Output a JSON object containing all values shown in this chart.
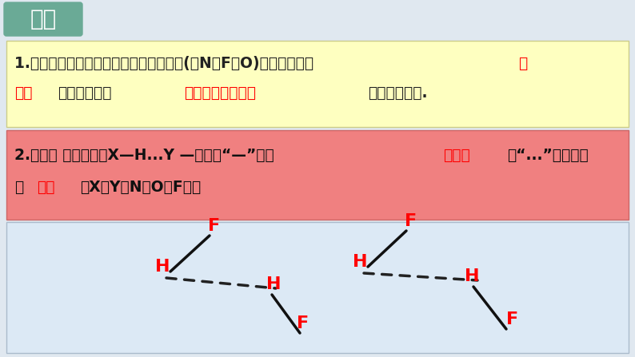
{
  "title": "氢键",
  "title_bg": "#6aaa96",
  "title_text_color": "#ffffff",
  "section1_bg": "#feffc0",
  "section2_bg": "#f08080",
  "atom_red": "#ff0000",
  "bond_color": "#111111",
  "hbond_color": "#333333",
  "bg_bottom": "#dce9f5",
  "overall_bg": "#e0e8f0",
  "sec1_line1_black": "1.定义：它是由已经与电负性很大的原子(如N、F、O)形成共价键的 ",
  "sec1_line1_red": "氢",
  "sec1_line2_red": "原子",
  "sec1_line2_black1": "与另一分子中",
  "sec1_line2_red2": "电负性很大的原子",
  "sec1_line2_black2": "之间的作用力.",
  "sec2_line1_black1": "2.表示： 氢键通常用X—H...Y —表示，“—”表示",
  "sec2_line1_red1": "共价键",
  "sec2_line1_black2": "，“...”表示形成",
  "sec2_line2_black1": "的",
  "sec2_line2_red": "氢键",
  "sec2_line2_black2": "（X、Y为N、O、F）如"
}
